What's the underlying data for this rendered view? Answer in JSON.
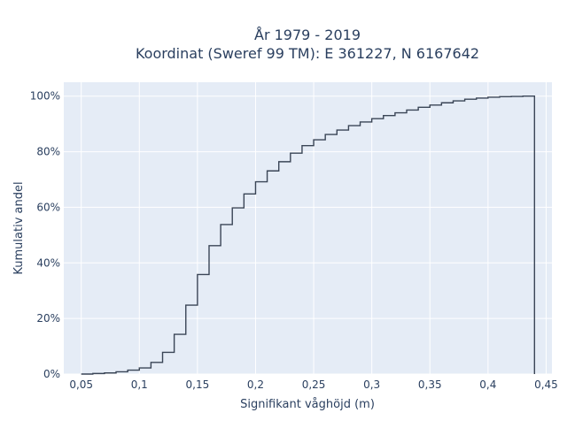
{
  "chart_data": {
    "type": "line",
    "subtype": "cumulative-step",
    "title_lines": [
      "År 1979 - 2019",
      "Koordinat (Sweref 99 TM): E 361227, N 6167642"
    ],
    "xlabel": "Signifikant våghöjd (m)",
    "ylabel": "Kumulativ andel",
    "xlim": [
      0.035,
      0.455
    ],
    "ylim": [
      0,
      1.05
    ],
    "x_ticks": [
      0.05,
      0.1,
      0.15,
      0.2,
      0.25,
      0.3,
      0.35,
      0.4,
      0.45
    ],
    "x_tick_labels": [
      "0,05",
      "0,1",
      "0,15",
      "0,2",
      "0,25",
      "0,3",
      "0,35",
      "0,4",
      "0,45"
    ],
    "y_ticks": [
      0,
      0.2,
      0.4,
      0.6,
      0.8,
      1.0
    ],
    "y_tick_labels": [
      "0%",
      "20%",
      "40%",
      "60%",
      "80%",
      "100%"
    ],
    "grid": true,
    "background_color": "#e5ecf6",
    "line_color": "#3a4556",
    "x": [
      0.05,
      0.06,
      0.07,
      0.08,
      0.09,
      0.1,
      0.11,
      0.12,
      0.13,
      0.14,
      0.15,
      0.16,
      0.17,
      0.18,
      0.19,
      0.2,
      0.21,
      0.22,
      0.23,
      0.24,
      0.25,
      0.26,
      0.27,
      0.28,
      0.29,
      0.3,
      0.31,
      0.32,
      0.33,
      0.34,
      0.35,
      0.36,
      0.37,
      0.38,
      0.39,
      0.4,
      0.41,
      0.42,
      0.43,
      0.44
    ],
    "y": [
      0.0,
      0.002,
      0.004,
      0.008,
      0.014,
      0.022,
      0.042,
      0.078,
      0.143,
      0.248,
      0.358,
      0.462,
      0.538,
      0.598,
      0.648,
      0.692,
      0.731,
      0.764,
      0.795,
      0.822,
      0.843,
      0.862,
      0.878,
      0.894,
      0.907,
      0.919,
      0.93,
      0.94,
      0.95,
      0.96,
      0.968,
      0.976,
      0.983,
      0.989,
      0.993,
      0.996,
      0.998,
      0.999,
      1.0,
      1.0
    ],
    "end_drop_x": 0.44
  }
}
